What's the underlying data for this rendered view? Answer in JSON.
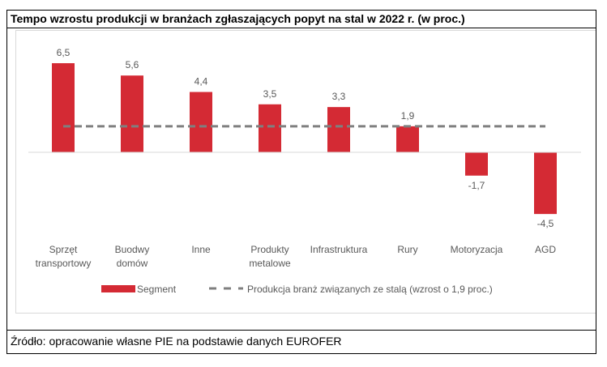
{
  "chart_data": {
    "type": "bar",
    "title": "Tempo wzrostu produkcji w branżach zgłaszających popyt na stal w 2022 r. (w proc.)",
    "categories": [
      [
        "Sprzęt",
        "transportowy"
      ],
      [
        "Buodwy",
        "domów"
      ],
      [
        "Inne"
      ],
      [
        "Produkty",
        "metalowe"
      ],
      [
        "Infrastruktura"
      ],
      [
        "Rury"
      ],
      [
        "Motoryzacja"
      ],
      [
        "AGD"
      ]
    ],
    "series": [
      {
        "name": "Segment",
        "values": [
          6.5,
          5.6,
          4.4,
          3.5,
          3.3,
          1.9,
          -1.7,
          -4.5
        ],
        "color": "#d42a34"
      }
    ],
    "data_labels": [
      "6,5",
      "5,6",
      "4,4",
      "3,5",
      "3,3",
      "1,9",
      "-1,7",
      "-4,5"
    ],
    "reference_line": {
      "name": "Produkcja branż związanych ze stalą (wzrost o 1,9 proc.)",
      "value": 1.9,
      "color": "#7f7f7f",
      "style": "dashed"
    },
    "ylim": [
      -4.5,
      6.5
    ],
    "grid": false,
    "legend": "bottom"
  },
  "source": "Źródło: opracowanie własne PIE na podstawie danych EUROFER"
}
